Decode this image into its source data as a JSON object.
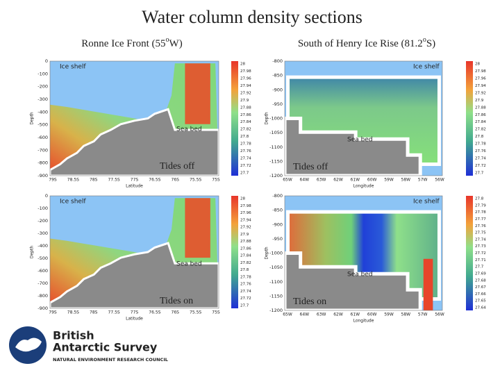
{
  "title": "Water column density sections",
  "columns": [
    {
      "heading": [
        "Ronne Ice Front (55",
        "o",
        "W)"
      ]
    },
    {
      "heading": [
        "South of Henry Ice Rise (81.2",
        "o",
        "S)"
      ]
    }
  ],
  "panels": [
    {
      "ice_shelf": "Ice shelf",
      "sea_bed": "Sea bed",
      "tides": "Tides off",
      "ylabel": "Depth",
      "xlabel": "Latitude",
      "yticks": [
        "0",
        "-100",
        "-200",
        "-300",
        "-400",
        "-500",
        "-600",
        "-700",
        "-800",
        "-900"
      ],
      "xticks": [
        "79S",
        "78.5S",
        "78S",
        "77.5S",
        "77S",
        "76.5S",
        "76S",
        "75.5S",
        "75S"
      ],
      "colorbar": [
        "28",
        "27.98",
        "27.96",
        "27.94",
        "27.92",
        "27.9",
        "27.88",
        "27.86",
        "27.84",
        "27.82",
        "27.8",
        "27.78",
        "27.76",
        "27.74",
        "27.72",
        "27.7"
      ]
    },
    {
      "ice_shelf": "Ice shelf",
      "sea_bed": "Sea bed",
      "tides": "Tides off",
      "ylabel": "Depth",
      "xlabel": "Longitude",
      "yticks": [
        "-800",
        "-850",
        "-900",
        "-950",
        "-1000",
        "-1050",
        "-1100",
        "-1150",
        "-1200"
      ],
      "xticks": [
        "65W",
        "64W",
        "63W",
        "62W",
        "61W",
        "60W",
        "59W",
        "58W",
        "57W",
        "56W"
      ],
      "colorbar": [
        "28",
        "27.98",
        "27.96",
        "27.94",
        "27.92",
        "27.9",
        "27.88",
        "27.86",
        "27.84",
        "27.82",
        "27.8",
        "27.78",
        "27.76",
        "27.74",
        "27.72",
        "27.7"
      ]
    },
    {
      "ice_shelf": "Ice shelf",
      "sea_bed": "Sea bed",
      "tides": "Tides on",
      "ylabel": "Depth",
      "xlabel": "Latitude",
      "yticks": [
        "0",
        "-100",
        "-200",
        "-300",
        "-400",
        "-500",
        "-600",
        "-700",
        "-800",
        "-900"
      ],
      "xticks": [
        "79S",
        "78.5S",
        "78S",
        "77.5S",
        "77S",
        "76.5S",
        "76S",
        "75.5S",
        "75S"
      ],
      "colorbar": [
        "28",
        "27.98",
        "27.96",
        "27.94",
        "27.92",
        "27.9",
        "27.88",
        "27.86",
        "27.84",
        "27.82",
        "27.8",
        "27.78",
        "27.76",
        "27.74",
        "27.72",
        "27.7"
      ]
    },
    {
      "ice_shelf": "Ice shelf",
      "sea_bed": "Sea bed",
      "tides": "Tides on",
      "ylabel": "Depth",
      "xlabel": "Longitude",
      "yticks": [
        "-800",
        "-850",
        "-900",
        "-950",
        "-1000",
        "-1050",
        "-1100",
        "-1150",
        "-1200"
      ],
      "xticks": [
        "65W",
        "64W",
        "63W",
        "62W",
        "61W",
        "60W",
        "59W",
        "58W",
        "57W",
        "56W"
      ],
      "colorbar": [
        "27.8",
        "27.79",
        "27.78",
        "27.77",
        "27.76",
        "27.75",
        "27.74",
        "27.73",
        "27.72",
        "27.71",
        "27.7",
        "27.69",
        "27.68",
        "27.67",
        "27.66",
        "27.65",
        "27.64"
      ]
    }
  ],
  "logo": {
    "line1": "British",
    "line2": "Antarctic Survey",
    "line3": "NATURAL ENVIRONMENT RESEARCH COUNCIL"
  }
}
